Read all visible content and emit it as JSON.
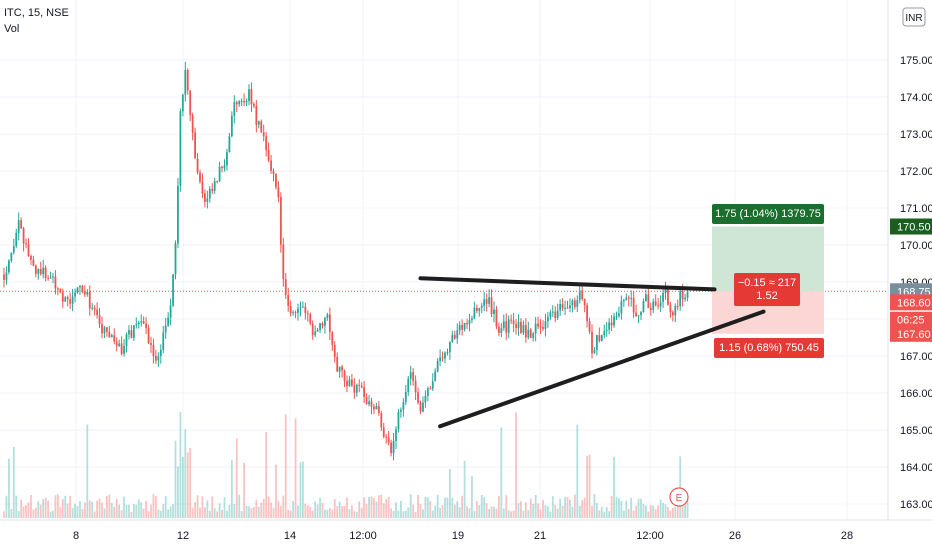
{
  "header": {
    "symbol_line": "ITC, 15, NSE",
    "indicator": "Vol",
    "currency_badge": "INR"
  },
  "colors": {
    "up": "#26a69a",
    "down": "#ef5350",
    "price_line": "#ef5350",
    "target_zone": "#cfe6d7",
    "stop_zone": "#fbd6d4",
    "trendline": "#1e1e1e"
  },
  "chart_data": {
    "type": "candlestick",
    "symbol": "ITC",
    "interval": "15",
    "exchange": "NSE",
    "ylim": [
      162.8,
      175.8
    ],
    "y_ticks": [
      "175.00",
      "174.00",
      "173.00",
      "172.00",
      "171.00",
      "170.00",
      "169.00",
      "168.00",
      "167.00",
      "166.00",
      "165.00",
      "164.00",
      "163.00"
    ],
    "x_ticks": [
      "8",
      "12",
      "14",
      "12:00",
      "19",
      "21",
      "12:00",
      "26",
      "28"
    ],
    "price_anchors": [
      {
        "bar": 0,
        "price": 169.2
      },
      {
        "bar": 6,
        "price": 170.5
      },
      {
        "bar": 12,
        "price": 169.4
      },
      {
        "bar": 20,
        "price": 169.1
      },
      {
        "bar": 26,
        "price": 168.4
      },
      {
        "bar": 32,
        "price": 168.9
      },
      {
        "bar": 40,
        "price": 167.7
      },
      {
        "bar": 48,
        "price": 167.2
      },
      {
        "bar": 56,
        "price": 168.1
      },
      {
        "bar": 62,
        "price": 166.8
      },
      {
        "bar": 68,
        "price": 168.3
      },
      {
        "bar": 70,
        "price": 170.0
      },
      {
        "bar": 72,
        "price": 173.5
      },
      {
        "bar": 74,
        "price": 174.8
      },
      {
        "bar": 78,
        "price": 172.4
      },
      {
        "bar": 82,
        "price": 171.1
      },
      {
        "bar": 86,
        "price": 171.6
      },
      {
        "bar": 90,
        "price": 172.3
      },
      {
        "bar": 94,
        "price": 173.7
      },
      {
        "bar": 100,
        "price": 174.1
      },
      {
        "bar": 104,
        "price": 173.2
      },
      {
        "bar": 108,
        "price": 172.4
      },
      {
        "bar": 112,
        "price": 171.2
      },
      {
        "bar": 114,
        "price": 169.0
      },
      {
        "bar": 116,
        "price": 168.2
      },
      {
        "bar": 122,
        "price": 168.3
      },
      {
        "bar": 126,
        "price": 167.7
      },
      {
        "bar": 132,
        "price": 168.1
      },
      {
        "bar": 136,
        "price": 166.7
      },
      {
        "bar": 140,
        "price": 166.3
      },
      {
        "bar": 146,
        "price": 166.0
      },
      {
        "bar": 152,
        "price": 165.6
      },
      {
        "bar": 158,
        "price": 164.3
      },
      {
        "bar": 162,
        "price": 165.7
      },
      {
        "bar": 166,
        "price": 166.6
      },
      {
        "bar": 170,
        "price": 165.6
      },
      {
        "bar": 176,
        "price": 166.6
      },
      {
        "bar": 182,
        "price": 167.4
      },
      {
        "bar": 188,
        "price": 167.9
      },
      {
        "bar": 194,
        "price": 168.3
      },
      {
        "bar": 198,
        "price": 168.5
      },
      {
        "bar": 202,
        "price": 167.7
      },
      {
        "bar": 208,
        "price": 167.9
      },
      {
        "bar": 214,
        "price": 167.6
      },
      {
        "bar": 220,
        "price": 167.9
      },
      {
        "bar": 226,
        "price": 168.2
      },
      {
        "bar": 232,
        "price": 168.4
      },
      {
        "bar": 236,
        "price": 168.7
      },
      {
        "bar": 240,
        "price": 167.2
      },
      {
        "bar": 244,
        "price": 167.6
      },
      {
        "bar": 250,
        "price": 168.1
      },
      {
        "bar": 254,
        "price": 168.7
      },
      {
        "bar": 258,
        "price": 168.2
      },
      {
        "bar": 262,
        "price": 168.5
      },
      {
        "bar": 266,
        "price": 168.3
      },
      {
        "bar": 270,
        "price": 168.8
      },
      {
        "bar": 272,
        "price": 168.1
      },
      {
        "bar": 276,
        "price": 168.6
      },
      {
        "bar": 279,
        "price": 168.75
      }
    ],
    "trendlines": [
      {
        "name": "upper",
        "from_bar": 170,
        "from_price": 169.1,
        "to_bar": 290,
        "to_price": 168.8
      },
      {
        "name": "lower",
        "from_bar": 178,
        "from_price": 165.1,
        "to_bar": 310,
        "to_price": 168.2
      }
    ],
    "position": {
      "entry": 168.75,
      "target": 170.5,
      "stop": 167.6,
      "target_label": "1.75 (1.04%) 1379.75",
      "stop_label": "1.15 (0.68%) 750.45",
      "center_label_1": "−0.15 ≈ 217",
      "center_label_2": "1.52"
    },
    "price_labels": [
      {
        "text": "170.50",
        "price": 170.5,
        "style": "target"
      },
      {
        "text": "168.75",
        "price": 168.75,
        "style": "last"
      },
      {
        "text": "168.60",
        "price": 168.45,
        "style": "down"
      },
      {
        "text": "06:25",
        "price": 167.98,
        "style": "down"
      },
      {
        "text": "167.60",
        "price": 167.6,
        "style": "down"
      }
    ],
    "earnings_marker": "E"
  }
}
